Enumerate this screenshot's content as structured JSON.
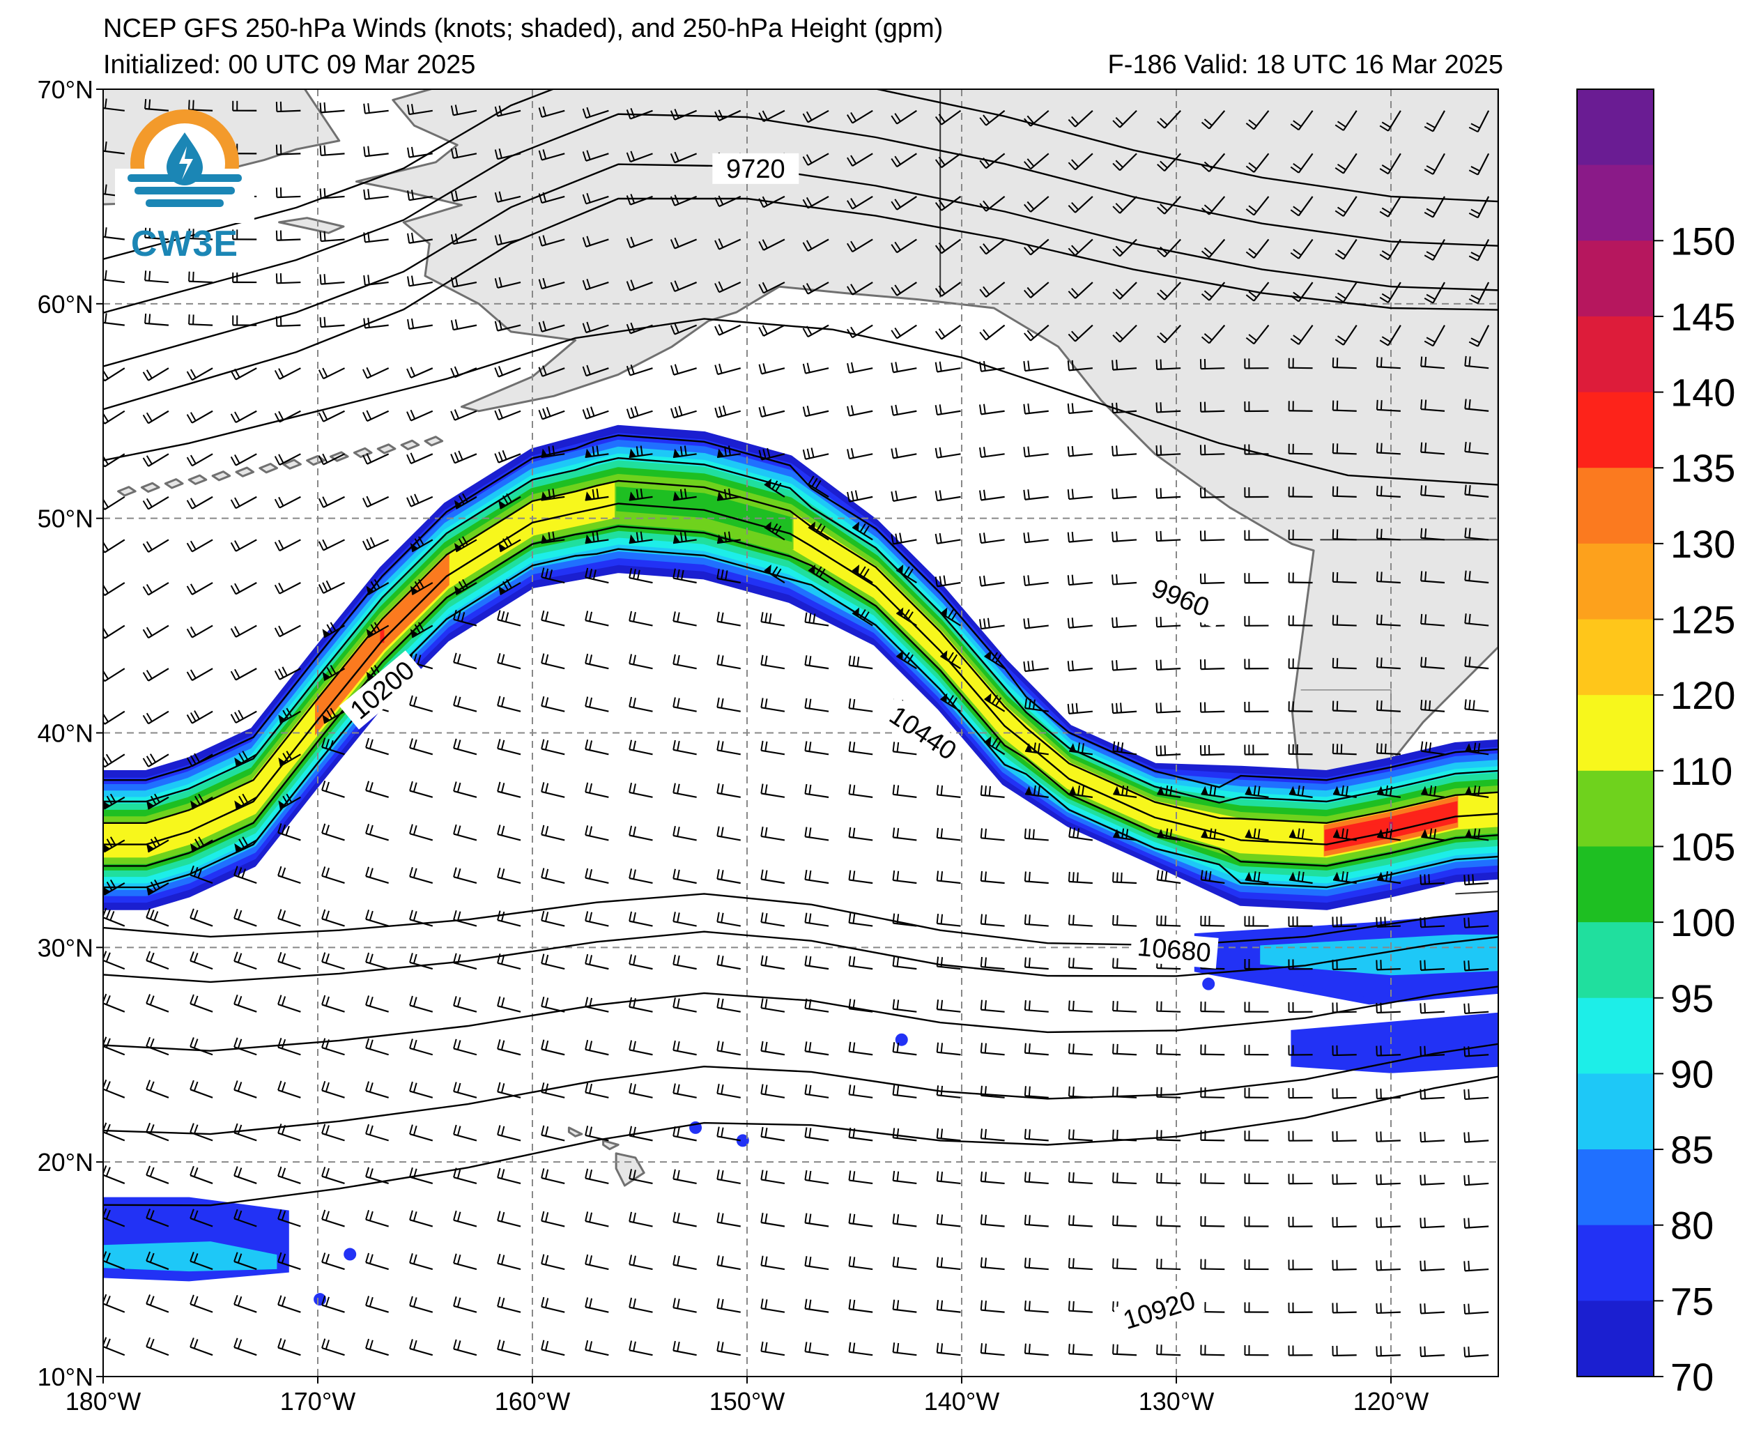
{
  "title": {
    "line1": "NCEP GFS 250-hPa Winds (knots; shaded), and 250-hPa Height (gpm)",
    "line2": "Initialized: 00 UTC 09 Mar 2025",
    "valid": "F-186  Valid: 18 UTC 16 Mar 2025"
  },
  "logo": {
    "text": "CW3E",
    "icon": "water-drop-sun-icon"
  },
  "map": {
    "lon_range": [
      -180,
      -115
    ],
    "lat_range": [
      10,
      70
    ],
    "lon_ticks": [
      "180°W",
      "170°W",
      "160°W",
      "150°W",
      "140°W",
      "130°W",
      "120°W"
    ],
    "lat_ticks": [
      "70°N",
      "60°N",
      "50°N",
      "40°N",
      "30°N",
      "20°N",
      "10°N"
    ],
    "grid": true,
    "land_color": "#e6e6e6",
    "coast_color": "#707070"
  },
  "contours": {
    "units": "gpm",
    "labels": [
      "9720",
      "9960",
      "10200",
      "10440",
      "10680",
      "10920"
    ]
  },
  "colorbar": {
    "levels": [
      "70",
      "75",
      "80",
      "85",
      "90",
      "95",
      "100",
      "105",
      "110",
      "120",
      "125",
      "130",
      "135",
      "140",
      "145",
      "150"
    ],
    "colors": [
      "#1b1fd0",
      "#2232f5",
      "#2070ff",
      "#1ec8f7",
      "#1deee8",
      "#20df9e",
      "#1ebf22",
      "#6fd21d",
      "#f7f71c",
      "#ffc61a",
      "#fda11c",
      "#fb7a1f",
      "#fd231a",
      "#dd1c3a",
      "#b6175e",
      "#8a1a88",
      "#6a1c93"
    ]
  }
}
